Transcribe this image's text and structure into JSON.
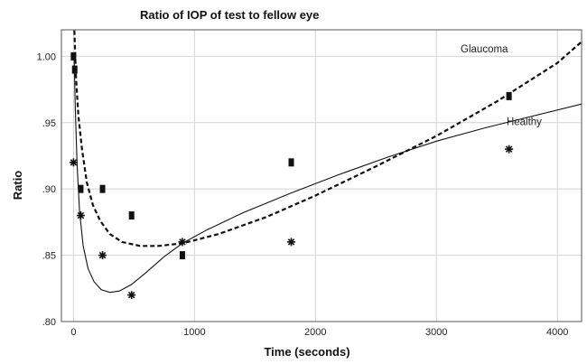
{
  "chart_data": {
    "type": "scatter",
    "title": "Ratio of IOP of test to fellow eye",
    "xlabel": "Time (seconds)",
    "ylabel": "Ratio",
    "xlim": [
      -100,
      4200
    ],
    "ylim": [
      0.8,
      1.02
    ],
    "x_ticks": [
      0,
      1000,
      2000,
      3000,
      4000
    ],
    "x_tick_labels": [
      "0",
      "1000",
      "2000",
      "3000",
      "4000"
    ],
    "y_ticks": [
      0.8,
      0.85,
      0.9,
      0.95,
      1.0
    ],
    "y_tick_labels": [
      ".80",
      ".85",
      ".90",
      ".95",
      "1.00"
    ],
    "grid": true,
    "series": [
      {
        "name": "Glaucoma",
        "marker": "square",
        "line_style": "dashed",
        "points": [
          {
            "x": 0,
            "y": 1.0
          },
          {
            "x": 10,
            "y": 0.99
          },
          {
            "x": 60,
            "y": 0.9
          },
          {
            "x": 240,
            "y": 0.9
          },
          {
            "x": 480,
            "y": 0.88
          },
          {
            "x": 900,
            "y": 0.85
          },
          {
            "x": 1800,
            "y": 0.92
          },
          {
            "x": 3600,
            "y": 0.97
          }
        ],
        "fit": [
          {
            "x": 5,
            "y": 1.025
          },
          {
            "x": 20,
            "y": 0.985
          },
          {
            "x": 40,
            "y": 0.955
          },
          {
            "x": 70,
            "y": 0.93
          },
          {
            "x": 110,
            "y": 0.905
          },
          {
            "x": 160,
            "y": 0.888
          },
          {
            "x": 220,
            "y": 0.876
          },
          {
            "x": 300,
            "y": 0.866
          },
          {
            "x": 400,
            "y": 0.86
          },
          {
            "x": 550,
            "y": 0.857
          },
          {
            "x": 700,
            "y": 0.857
          },
          {
            "x": 900,
            "y": 0.859
          },
          {
            "x": 1200,
            "y": 0.866
          },
          {
            "x": 1600,
            "y": 0.879
          },
          {
            "x": 2000,
            "y": 0.895
          },
          {
            "x": 2500,
            "y": 0.917
          },
          {
            "x": 3000,
            "y": 0.94
          },
          {
            "x": 3500,
            "y": 0.966
          },
          {
            "x": 4000,
            "y": 0.995
          },
          {
            "x": 4200,
            "y": 1.011
          }
        ]
      },
      {
        "name": "Healthy",
        "marker": "asterisk",
        "line_style": "solid",
        "points": [
          {
            "x": 0,
            "y": 0.92
          },
          {
            "x": 60,
            "y": 0.88
          },
          {
            "x": 240,
            "y": 0.85
          },
          {
            "x": 480,
            "y": 0.82
          },
          {
            "x": 900,
            "y": 0.86
          },
          {
            "x": 1800,
            "y": 0.86
          },
          {
            "x": 3600,
            "y": 0.93
          }
        ],
        "fit": [
          {
            "x": 5,
            "y": 1.0
          },
          {
            "x": 15,
            "y": 0.96
          },
          {
            "x": 30,
            "y": 0.918
          },
          {
            "x": 50,
            "y": 0.883
          },
          {
            "x": 80,
            "y": 0.857
          },
          {
            "x": 120,
            "y": 0.84
          },
          {
            "x": 170,
            "y": 0.83
          },
          {
            "x": 230,
            "y": 0.824
          },
          {
            "x": 300,
            "y": 0.822
          },
          {
            "x": 380,
            "y": 0.823
          },
          {
            "x": 480,
            "y": 0.828
          },
          {
            "x": 600,
            "y": 0.837
          },
          {
            "x": 750,
            "y": 0.849
          },
          {
            "x": 900,
            "y": 0.859
          },
          {
            "x": 1100,
            "y": 0.869
          },
          {
            "x": 1400,
            "y": 0.882
          },
          {
            "x": 1800,
            "y": 0.897
          },
          {
            "x": 2200,
            "y": 0.911
          },
          {
            "x": 2600,
            "y": 0.924
          },
          {
            "x": 3000,
            "y": 0.936
          },
          {
            "x": 3400,
            "y": 0.946
          },
          {
            "x": 3800,
            "y": 0.955
          },
          {
            "x": 4200,
            "y": 0.964
          }
        ]
      }
    ]
  }
}
